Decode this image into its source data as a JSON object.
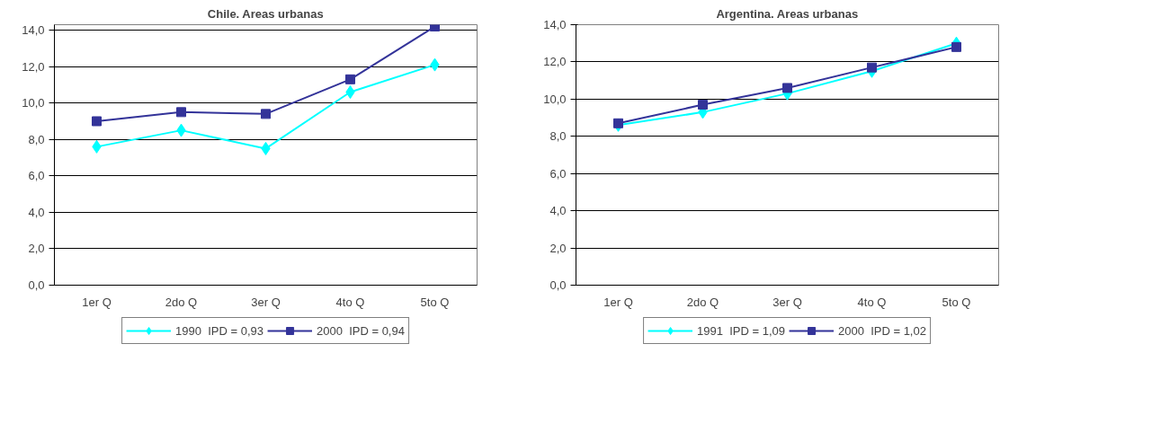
{
  "chart_data": [
    {
      "type": "line",
      "title": "Chile. Areas urbanas",
      "categories": [
        "1er Q",
        "2do Q",
        "3er Q",
        "4to Q",
        "5to Q"
      ],
      "ylim": [
        0,
        14.3
      ],
      "yticks": [
        {
          "value": 0,
          "label": "0,0"
        },
        {
          "value": 2,
          "label": "2,0"
        },
        {
          "value": 4,
          "label": "4,0"
        },
        {
          "value": 6,
          "label": "6,0"
        },
        {
          "value": 8,
          "label": "8,0"
        },
        {
          "value": 10,
          "label": "10,0"
        },
        {
          "value": 12,
          "label": "12,0"
        },
        {
          "value": 14,
          "label": "14,0"
        }
      ],
      "grid": "y",
      "legend": "bottom",
      "series": [
        {
          "name": "1990  IPD = 0,93",
          "color": "#00ffff",
          "marker": "diamond",
          "values": [
            7.6,
            8.5,
            7.5,
            10.6,
            12.1
          ]
        },
        {
          "name": "2000  IPD = 0,94",
          "color": "#333399",
          "marker": "square",
          "values": [
            9.0,
            9.5,
            9.4,
            11.3,
            14.2
          ]
        }
      ]
    },
    {
      "type": "line",
      "title": "Argentina. Areas urbanas",
      "categories": [
        "1er Q",
        "2do Q",
        "3er Q",
        "4to Q",
        "5to Q"
      ],
      "ylim": [
        0,
        14
      ],
      "yticks": [
        {
          "value": 0,
          "label": "0,0"
        },
        {
          "value": 2,
          "label": "2,0"
        },
        {
          "value": 4,
          "label": "4,0"
        },
        {
          "value": 6,
          "label": "6,0"
        },
        {
          "value": 8,
          "label": "8,0"
        },
        {
          "value": 10,
          "label": "10,0"
        },
        {
          "value": 12,
          "label": "12,0"
        },
        {
          "value": 14,
          "label": "14,0"
        }
      ],
      "grid": "y",
      "legend": "bottom",
      "series": [
        {
          "name": "1991  IPD = 1,09",
          "color": "#00ffff",
          "marker": "diamond",
          "values": [
            8.6,
            9.3,
            10.3,
            11.5,
            13.0
          ]
        },
        {
          "name": "2000  IPD = 1,02",
          "color": "#333399",
          "marker": "square",
          "values": [
            8.7,
            9.7,
            10.6,
            11.7,
            12.8
          ]
        }
      ]
    }
  ]
}
